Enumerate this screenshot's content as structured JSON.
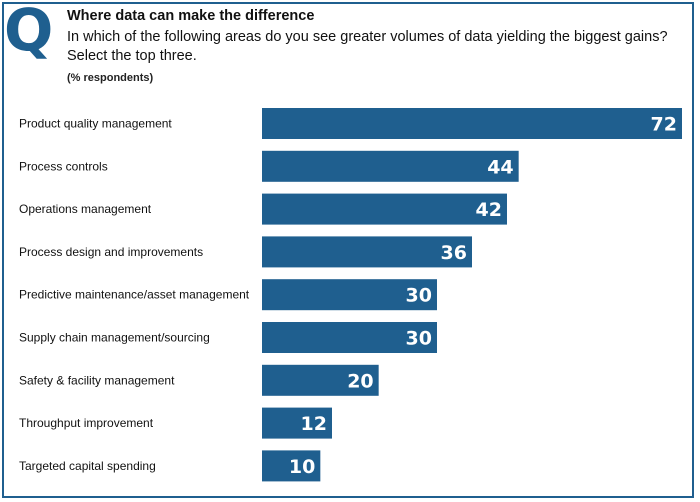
{
  "badge": "Q",
  "colors": {
    "accent": "#1f5f8f",
    "bar": "#1f5f8f",
    "value_text": "#ffffff"
  },
  "chart_data": {
    "type": "bar",
    "orientation": "horizontal",
    "title": "Where data can make the difference",
    "subtitle": "In which of the following areas do you see greater volumes of data yielding the biggest gains? Select the top three.",
    "unit_note": "(% respondents)",
    "categories": [
      "Product quality management",
      "Process controls",
      "Operations management",
      "Process design and improvements",
      "Predictive maintenance/asset management",
      "Supply chain management/sourcing",
      "Safety & facility management",
      "Throughput improvement",
      "Targeted capital spending"
    ],
    "values": [
      72,
      44,
      42,
      36,
      30,
      30,
      20,
      12,
      10
    ],
    "xlim": [
      0,
      72
    ],
    "grid": false,
    "legend": "none"
  }
}
